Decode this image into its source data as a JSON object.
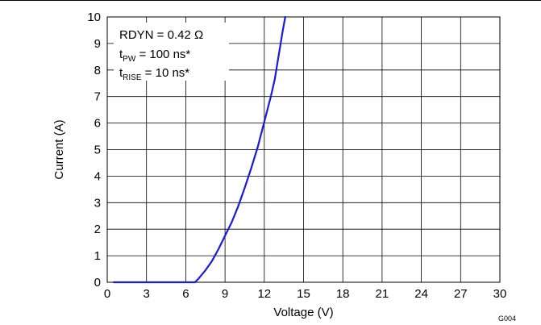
{
  "chart_data": {
    "type": "line",
    "xlabel": "Voltage (V)",
    "ylabel": "Current (A)",
    "xlim": [
      0,
      30
    ],
    "ylim": [
      0,
      10
    ],
    "xticks": [
      0,
      3,
      6,
      9,
      12,
      15,
      18,
      21,
      24,
      27,
      30
    ],
    "yticks": [
      0,
      1,
      2,
      3,
      4,
      5,
      6,
      7,
      8,
      9,
      10
    ],
    "grid": true,
    "figure_id": "G004",
    "annotation": {
      "line1": "RDYN = 0.42 Ω",
      "line2": {
        "main": "t",
        "sub": "PW",
        "rest": " = 100 ns*"
      },
      "line3": {
        "main": "t",
        "sub": "RISE",
        "rest": " = 10 ns*"
      }
    },
    "series": [
      {
        "color": "#1a1adb",
        "x": [
          0.5,
          6.7,
          7.0,
          7.5,
          8.0,
          8.5,
          9.0,
          9.5,
          10.0,
          10.5,
          11.0,
          11.5,
          12.0,
          12.5,
          12.8,
          13.0,
          13.2,
          13.4,
          13.6
        ],
        "y": [
          0.0,
          0.0,
          0.15,
          0.45,
          0.8,
          1.25,
          1.75,
          2.25,
          2.85,
          3.55,
          4.3,
          5.1,
          6.05,
          7.0,
          7.65,
          8.25,
          8.85,
          9.45,
          10.0
        ]
      }
    ]
  }
}
